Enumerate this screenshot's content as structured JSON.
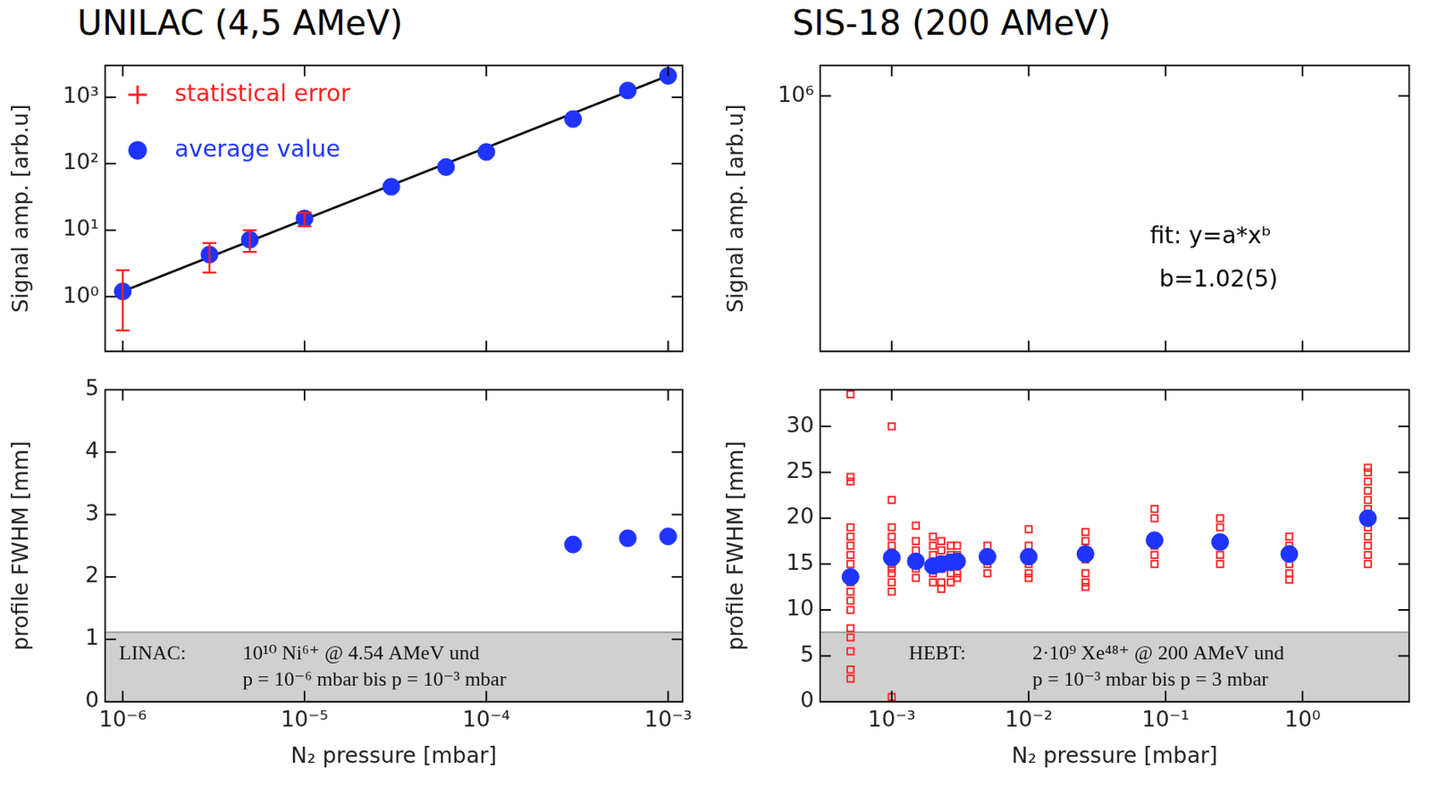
{
  "chart_data": [
    {
      "type": "scatter",
      "title": "UNILAC (4,5 AMeV)",
      "y_label": "Signal amp. [arb.u]",
      "log": true,
      "grid": false,
      "tick_labels": "y",
      "legend": "upper left",
      "xlim": [
        8e-07,
        0.0012
      ],
      "xticks": [
        {
          "value": 1e-06,
          "label": "10⁻⁶"
        },
        {
          "value": 1e-05,
          "label": "10⁻⁵"
        },
        {
          "value": 0.0001,
          "label": "10⁻⁴"
        },
        {
          "value": 0.001,
          "label": "10⁻³"
        }
      ],
      "ylim": [
        0.15,
        3000
      ],
      "yticks": [
        {
          "value": 1,
          "label": "10⁰"
        },
        {
          "value": 10,
          "label": "10¹"
        },
        {
          "value": 100,
          "label": "10²"
        },
        {
          "value": 1000,
          "label": "10³"
        }
      ],
      "series": [
        {
          "name": "average value",
          "color": "#1f35ff",
          "marker": "circle",
          "x": [
            1e-06,
            3e-06,
            5e-06,
            1e-05,
            3e-05,
            6e-05,
            0.0001,
            0.0003,
            0.0006,
            0.001
          ],
          "values": [
            1.2,
            4.3,
            7.2,
            15,
            45,
            89,
            150,
            470,
            1260,
            2090
          ],
          "errors": {
            "name": "statistical error",
            "color": "#ff2020",
            "low": [
              0.31,
              2.3,
              4.7,
              11.5,
              null,
              null,
              null,
              null,
              null,
              null
            ],
            "high": [
              2.5,
              6.4,
              10,
              18.4,
              null,
              null,
              null,
              null,
              null,
              null
            ]
          }
        },
        {
          "type": "line",
          "color": "#000000",
          "line_style": "solid",
          "x": [
            1e-06,
            0.001
          ],
          "values": [
            1.2,
            2100
          ]
        }
      ]
    },
    {
      "type": "scatter",
      "y_label": "profile FWHM [mm]",
      "x_label": "N₂ pressure [mbar]",
      "log": "x",
      "grid": false,
      "xlim": [
        8e-07,
        0.0012
      ],
      "xticks": [
        {
          "value": 1e-06,
          "label": "10⁻⁶"
        },
        {
          "value": 1e-05,
          "label": "10⁻⁵"
        },
        {
          "value": 0.0001,
          "label": "10⁻⁴"
        },
        {
          "value": 0.001,
          "label": "10⁻³"
        }
      ],
      "ylim": [
        0,
        5
      ],
      "yticks": [
        0,
        1,
        2,
        3,
        4,
        5
      ],
      "annotation_box": {
        "label": "LINAC:",
        "lines": [
          "10¹⁰ Ni⁶⁺ @ 4.54 AMeV und",
          "p = 10⁻⁶ mbar bis p = 10⁻³ mbar"
        ]
      },
      "series": [
        {
          "color": "#1f35ff",
          "marker": "circle",
          "x": [
            0.0003,
            0.0006,
            0.001
          ],
          "values": [
            2.52,
            2.62,
            2.65
          ]
        }
      ]
    },
    {
      "type": "scatter",
      "title": "SIS-18 (200 AMeV)",
      "y_label": "Signal amp. [arb.u]",
      "log": true,
      "grid": false,
      "tick_labels": "y",
      "xlim": [
        0.0003,
        6
      ],
      "xticks": [
        {
          "value": 0.001,
          "label": "10⁻³"
        },
        {
          "value": 0.01,
          "label": "10⁻²"
        },
        {
          "value": 0.1,
          "label": "10⁻¹"
        },
        {
          "value": 1,
          "label": "10⁰"
        }
      ],
      "ylim": [
        100,
        3000000
      ],
      "yticks": [
        {
          "value": 1000000,
          "label": "10⁶"
        }
      ],
      "annotations": [
        "fit: y=a*xᵇ",
        "b=1.02(5)"
      ],
      "series": []
    },
    {
      "type": "scatter",
      "y_label": "profile FWHM [mm]",
      "x_label": "N₂ pressure [mbar]",
      "log": "x",
      "grid": false,
      "xlim": [
        0.0003,
        6
      ],
      "xticks": [
        {
          "value": 0.001,
          "label": "10⁻³"
        },
        {
          "value": 0.01,
          "label": "10⁻²"
        },
        {
          "value": 0.1,
          "label": "10⁻¹"
        },
        {
          "value": 1,
          "label": "10⁰"
        }
      ],
      "ylim": [
        0,
        34
      ],
      "yticks": [
        0,
        5,
        10,
        15,
        20,
        25,
        30
      ],
      "annotation_box": {
        "label": "HEBT:",
        "lines": [
          "2·10⁹ Xe⁴⁸⁺ @ 200 AMeV und",
          "p = 10⁻³ mbar bis p = 3 mbar"
        ]
      },
      "series": [
        {
          "color": "#1f35ff",
          "marker": "circle",
          "x": [
            0.0005,
            0.001,
            0.0015,
            0.002,
            0.0023,
            0.0027,
            0.003,
            0.005,
            0.01,
            0.026,
            0.083,
            0.25,
            0.8,
            3
          ],
          "values": [
            13.6,
            15.7,
            15.3,
            14.8,
            15.0,
            15.2,
            15.3,
            15.8,
            15.8,
            16.1,
            17.6,
            17.4,
            16.1,
            20.0
          ]
        },
        {
          "color": "#ff2020",
          "marker": "square_open",
          "x": [
            0.0005,
            0.0005,
            0.0005,
            0.0005,
            0.0005,
            0.0005,
            0.0005,
            0.0005,
            0.0005,
            0.0005,
            0.0005,
            0.0005,
            0.0005,
            0.0005,
            0.0005,
            0.0005,
            0.0005,
            0.001,
            0.001,
            0.001,
            0.001,
            0.001,
            0.001,
            0.001,
            0.001,
            0.001,
            0.001,
            0.001,
            0.001,
            0.001,
            0.0015,
            0.0015,
            0.0015,
            0.0015,
            0.0015,
            0.0015,
            0.002,
            0.002,
            0.002,
            0.002,
            0.002,
            0.002,
            0.0023,
            0.0023,
            0.0023,
            0.0023,
            0.0023,
            0.0023,
            0.0027,
            0.0027,
            0.0027,
            0.0027,
            0.0027,
            0.003,
            0.003,
            0.003,
            0.003,
            0.003,
            0.005,
            0.005,
            0.005,
            0.005,
            0.01,
            0.01,
            0.01,
            0.01,
            0.01,
            0.01,
            0.026,
            0.026,
            0.026,
            0.026,
            0.026,
            0.026,
            0.026,
            0.083,
            0.083,
            0.083,
            0.083,
            0.083,
            0.083,
            0.25,
            0.25,
            0.25,
            0.25,
            0.25,
            0.8,
            0.8,
            0.8,
            0.8,
            0.8,
            0.8,
            3,
            3,
            3,
            3,
            3,
            3,
            3,
            3,
            3,
            3,
            3,
            3
          ],
          "values": [
            33.5,
            24.5,
            24,
            19,
            18,
            17,
            16,
            15,
            13,
            12,
            11,
            10,
            8,
            7,
            5.5,
            3.5,
            2.5,
            30,
            22,
            19,
            18,
            17,
            16,
            15.5,
            15,
            14.5,
            14,
            13,
            12,
            0.5,
            19.2,
            17.5,
            16.5,
            15.5,
            14.5,
            13.5,
            18,
            17,
            16,
            15,
            14,
            13,
            17.5,
            16.5,
            15.5,
            14.5,
            13,
            12.3,
            17,
            16,
            15,
            14,
            13,
            17,
            16,
            15,
            14,
            13.5,
            17,
            16,
            15,
            14,
            18.8,
            17,
            16,
            15,
            14,
            13.5,
            18.5,
            17.5,
            16.5,
            15.5,
            14,
            13,
            12.5,
            21,
            20,
            18,
            17,
            16,
            15,
            20,
            19,
            17.5,
            16,
            15,
            18,
            17,
            16,
            15,
            14,
            13.3,
            25.5,
            25,
            24,
            23,
            22,
            21,
            20,
            19,
            18,
            17,
            16,
            15
          ]
        }
      ]
    }
  ]
}
